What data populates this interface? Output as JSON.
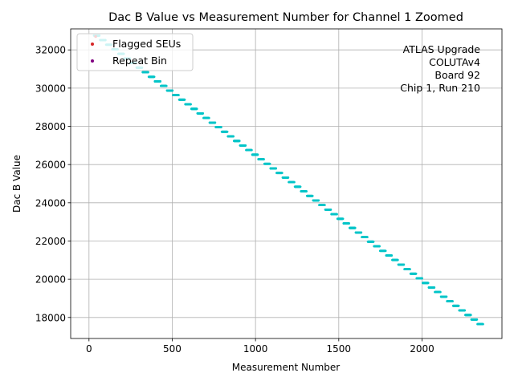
{
  "chart_data": {
    "type": "scatter",
    "title": "Dac B Value vs Measurement Number for Channel 1 Zoomed",
    "xlabel": "Measurement Number",
    "ylabel": "Dac B Value",
    "xlim": [
      -110,
      2480
    ],
    "ylim": [
      16900,
      33100
    ],
    "x_ticks": [
      0,
      500,
      1000,
      1500,
      2000
    ],
    "y_ticks": [
      18000,
      20000,
      22000,
      24000,
      26000,
      28000,
      30000,
      32000
    ],
    "grid": true,
    "legend_position": "top-left",
    "annotation": [
      "ATLAS Upgrade",
      "COLUTAv4",
      "Board 92",
      "Chip 1, Run 210"
    ],
    "series": [
      {
        "name": "",
        "color": "#00c5c8",
        "x_range": [
          30,
          2370
        ],
        "y_start": 32750,
        "y_end": 17650,
        "step_count": 64,
        "points_per_step": 37
      },
      {
        "name": "Flagged SEUs",
        "color": "#d62728",
        "x": [
          40
        ],
        "y": [
          32700
        ]
      },
      {
        "name": "Repeat Bin",
        "color": "#800080",
        "x": [],
        "y": []
      }
    ]
  }
}
